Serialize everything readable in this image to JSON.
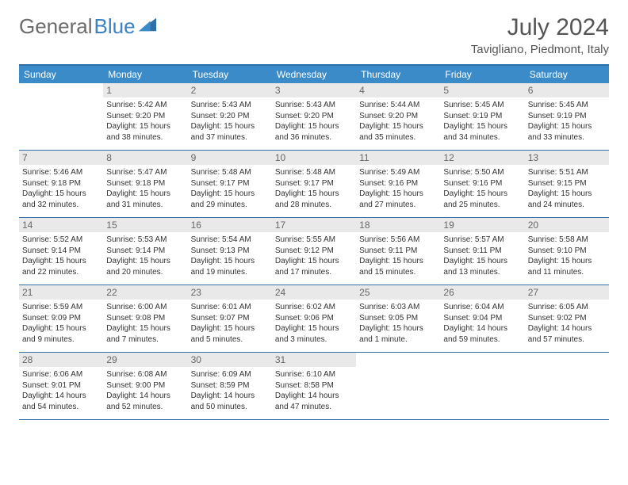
{
  "logo": {
    "part1": "General",
    "part2": "Blue"
  },
  "title": "July 2024",
  "location": "Tavigliano, Piedmont, Italy",
  "colors": {
    "header_bar": "#3b8bc9",
    "border": "#2f6fa8",
    "daynum_bg": "#e9e9e9",
    "text": "#333333",
    "logo_gray": "#6b6b6b",
    "logo_blue": "#3b82c4"
  },
  "day_names": [
    "Sunday",
    "Monday",
    "Tuesday",
    "Wednesday",
    "Thursday",
    "Friday",
    "Saturday"
  ],
  "weeks": [
    [
      {
        "day": "",
        "empty": true
      },
      {
        "day": "1",
        "sunrise": "Sunrise: 5:42 AM",
        "sunset": "Sunset: 9:20 PM",
        "daylight": "Daylight: 15 hours and 38 minutes."
      },
      {
        "day": "2",
        "sunrise": "Sunrise: 5:43 AM",
        "sunset": "Sunset: 9:20 PM",
        "daylight": "Daylight: 15 hours and 37 minutes."
      },
      {
        "day": "3",
        "sunrise": "Sunrise: 5:43 AM",
        "sunset": "Sunset: 9:20 PM",
        "daylight": "Daylight: 15 hours and 36 minutes."
      },
      {
        "day": "4",
        "sunrise": "Sunrise: 5:44 AM",
        "sunset": "Sunset: 9:20 PM",
        "daylight": "Daylight: 15 hours and 35 minutes."
      },
      {
        "day": "5",
        "sunrise": "Sunrise: 5:45 AM",
        "sunset": "Sunset: 9:19 PM",
        "daylight": "Daylight: 15 hours and 34 minutes."
      },
      {
        "day": "6",
        "sunrise": "Sunrise: 5:45 AM",
        "sunset": "Sunset: 9:19 PM",
        "daylight": "Daylight: 15 hours and 33 minutes."
      }
    ],
    [
      {
        "day": "7",
        "sunrise": "Sunrise: 5:46 AM",
        "sunset": "Sunset: 9:18 PM",
        "daylight": "Daylight: 15 hours and 32 minutes."
      },
      {
        "day": "8",
        "sunrise": "Sunrise: 5:47 AM",
        "sunset": "Sunset: 9:18 PM",
        "daylight": "Daylight: 15 hours and 31 minutes."
      },
      {
        "day": "9",
        "sunrise": "Sunrise: 5:48 AM",
        "sunset": "Sunset: 9:17 PM",
        "daylight": "Daylight: 15 hours and 29 minutes."
      },
      {
        "day": "10",
        "sunrise": "Sunrise: 5:48 AM",
        "sunset": "Sunset: 9:17 PM",
        "daylight": "Daylight: 15 hours and 28 minutes."
      },
      {
        "day": "11",
        "sunrise": "Sunrise: 5:49 AM",
        "sunset": "Sunset: 9:16 PM",
        "daylight": "Daylight: 15 hours and 27 minutes."
      },
      {
        "day": "12",
        "sunrise": "Sunrise: 5:50 AM",
        "sunset": "Sunset: 9:16 PM",
        "daylight": "Daylight: 15 hours and 25 minutes."
      },
      {
        "day": "13",
        "sunrise": "Sunrise: 5:51 AM",
        "sunset": "Sunset: 9:15 PM",
        "daylight": "Daylight: 15 hours and 24 minutes."
      }
    ],
    [
      {
        "day": "14",
        "sunrise": "Sunrise: 5:52 AM",
        "sunset": "Sunset: 9:14 PM",
        "daylight": "Daylight: 15 hours and 22 minutes."
      },
      {
        "day": "15",
        "sunrise": "Sunrise: 5:53 AM",
        "sunset": "Sunset: 9:14 PM",
        "daylight": "Daylight: 15 hours and 20 minutes."
      },
      {
        "day": "16",
        "sunrise": "Sunrise: 5:54 AM",
        "sunset": "Sunset: 9:13 PM",
        "daylight": "Daylight: 15 hours and 19 minutes."
      },
      {
        "day": "17",
        "sunrise": "Sunrise: 5:55 AM",
        "sunset": "Sunset: 9:12 PM",
        "daylight": "Daylight: 15 hours and 17 minutes."
      },
      {
        "day": "18",
        "sunrise": "Sunrise: 5:56 AM",
        "sunset": "Sunset: 9:11 PM",
        "daylight": "Daylight: 15 hours and 15 minutes."
      },
      {
        "day": "19",
        "sunrise": "Sunrise: 5:57 AM",
        "sunset": "Sunset: 9:11 PM",
        "daylight": "Daylight: 15 hours and 13 minutes."
      },
      {
        "day": "20",
        "sunrise": "Sunrise: 5:58 AM",
        "sunset": "Sunset: 9:10 PM",
        "daylight": "Daylight: 15 hours and 11 minutes."
      }
    ],
    [
      {
        "day": "21",
        "sunrise": "Sunrise: 5:59 AM",
        "sunset": "Sunset: 9:09 PM",
        "daylight": "Daylight: 15 hours and 9 minutes."
      },
      {
        "day": "22",
        "sunrise": "Sunrise: 6:00 AM",
        "sunset": "Sunset: 9:08 PM",
        "daylight": "Daylight: 15 hours and 7 minutes."
      },
      {
        "day": "23",
        "sunrise": "Sunrise: 6:01 AM",
        "sunset": "Sunset: 9:07 PM",
        "daylight": "Daylight: 15 hours and 5 minutes."
      },
      {
        "day": "24",
        "sunrise": "Sunrise: 6:02 AM",
        "sunset": "Sunset: 9:06 PM",
        "daylight": "Daylight: 15 hours and 3 minutes."
      },
      {
        "day": "25",
        "sunrise": "Sunrise: 6:03 AM",
        "sunset": "Sunset: 9:05 PM",
        "daylight": "Daylight: 15 hours and 1 minute."
      },
      {
        "day": "26",
        "sunrise": "Sunrise: 6:04 AM",
        "sunset": "Sunset: 9:04 PM",
        "daylight": "Daylight: 14 hours and 59 minutes."
      },
      {
        "day": "27",
        "sunrise": "Sunrise: 6:05 AM",
        "sunset": "Sunset: 9:02 PM",
        "daylight": "Daylight: 14 hours and 57 minutes."
      }
    ],
    [
      {
        "day": "28",
        "sunrise": "Sunrise: 6:06 AM",
        "sunset": "Sunset: 9:01 PM",
        "daylight": "Daylight: 14 hours and 54 minutes."
      },
      {
        "day": "29",
        "sunrise": "Sunrise: 6:08 AM",
        "sunset": "Sunset: 9:00 PM",
        "daylight": "Daylight: 14 hours and 52 minutes."
      },
      {
        "day": "30",
        "sunrise": "Sunrise: 6:09 AM",
        "sunset": "Sunset: 8:59 PM",
        "daylight": "Daylight: 14 hours and 50 minutes."
      },
      {
        "day": "31",
        "sunrise": "Sunrise: 6:10 AM",
        "sunset": "Sunset: 8:58 PM",
        "daylight": "Daylight: 14 hours and 47 minutes."
      },
      {
        "day": "",
        "empty": true
      },
      {
        "day": "",
        "empty": true
      },
      {
        "day": "",
        "empty": true
      }
    ]
  ]
}
